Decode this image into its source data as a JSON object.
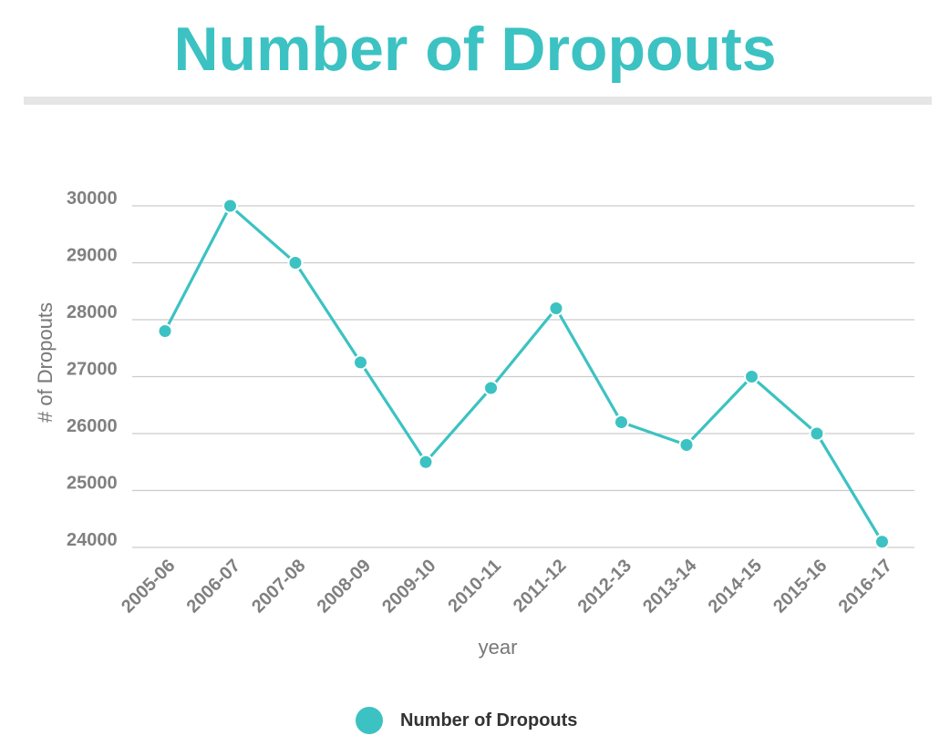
{
  "title": "Number of Dropouts",
  "colors": {
    "accent": "#3cc2c2",
    "grid": "#cccccc",
    "tick_text": "#808080",
    "divider": "#e6e6e6"
  },
  "chart_data": {
    "type": "line",
    "title": "Number of Dropouts",
    "xlabel": "year",
    "ylabel": "# of Dropouts",
    "categories": [
      "2005-06",
      "2006-07",
      "2007-08",
      "2008-09",
      "2009-10",
      "2010-11",
      "2011-12",
      "2012-13",
      "2013-14",
      "2014-15",
      "2015-16",
      "2016-17"
    ],
    "series": [
      {
        "name": "Number of Dropouts",
        "values": [
          27800,
          30000,
          29000,
          27250,
          25500,
          26800,
          28200,
          26200,
          25800,
          27000,
          26000,
          24100
        ]
      }
    ],
    "ylim": [
      24000,
      30000
    ],
    "yticks": [
      30000,
      29000,
      28000,
      27000,
      26000,
      25000,
      24000
    ],
    "grid": true,
    "legend": "bottom"
  }
}
